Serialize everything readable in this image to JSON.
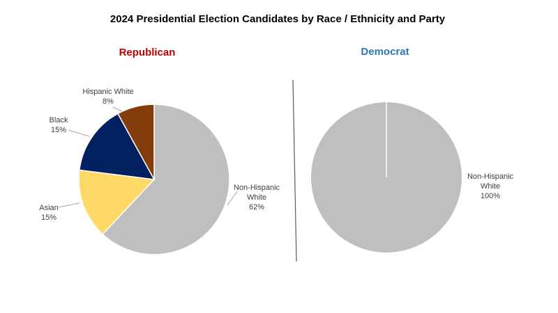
{
  "chart_data": {
    "title": "2024 Presidential Election Candidates by Race / Ethnicity and Party",
    "charts": [
      {
        "type": "pie",
        "title": "Republican",
        "title_color": "#c00000",
        "slices": [
          {
            "label": "Non-Hispanic White",
            "display_lines": [
              "Non-Hispanic",
              "White"
            ],
            "value": 62,
            "value_label": "62%",
            "color": "#bfbfbf"
          },
          {
            "label": "Asian",
            "display_lines": [
              "Asian"
            ],
            "value": 15,
            "value_label": "15%",
            "color": "#ffd966"
          },
          {
            "label": "Black",
            "display_lines": [
              "Black"
            ],
            "value": 15,
            "value_label": "15%",
            "color": "#002060"
          },
          {
            "label": "Hispanic White",
            "display_lines": [
              "Hispanic White"
            ],
            "value": 8,
            "value_label": "8%",
            "color": "#843c0c"
          }
        ]
      },
      {
        "type": "pie",
        "title": "Democrat",
        "title_color": "#2e75b6",
        "slices": [
          {
            "label": "Non-Hispanic White",
            "display_lines": [
              "Non-Hispanic",
              "White"
            ],
            "value": 100,
            "value_label": "100%",
            "color": "#bfbfbf"
          }
        ]
      }
    ]
  }
}
